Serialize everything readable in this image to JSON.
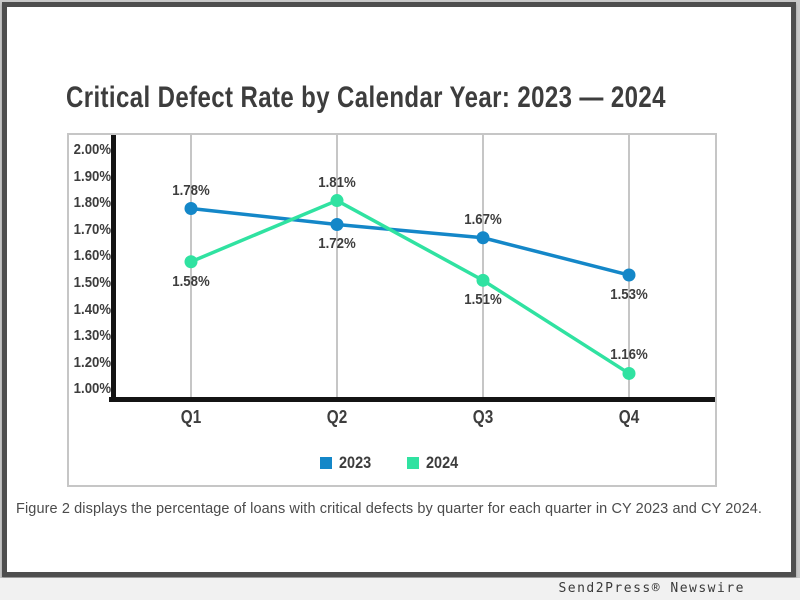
{
  "page": {
    "caption": "Figure 2 displays the percentage of loans with critical defects by quarter for each quarter in CY 2023 and CY 2024.",
    "footer": "Send2Press® Newswire"
  },
  "chart_data": {
    "type": "line",
    "title": "Critical Defect Rate by Calendar Year: 2023 — 2024",
    "categories": [
      "Q1",
      "Q2",
      "Q3",
      "Q4"
    ],
    "series": [
      {
        "name": "2023",
        "color": "#1487c8",
        "values": [
          1.78,
          1.72,
          1.67,
          1.53
        ],
        "point_labels": [
          "1.78%",
          "1.72%",
          "1.67%",
          "1.53%"
        ],
        "label_positions": [
          "above",
          "below",
          "above",
          "below"
        ]
      },
      {
        "name": "2024",
        "color": "#30e2a1",
        "values": [
          1.58,
          1.81,
          1.51,
          1.16
        ],
        "point_labels": [
          "1.58%",
          "1.81%",
          "1.51%",
          "1.16%"
        ],
        "label_positions": [
          "below",
          "above",
          "below",
          "above"
        ]
      }
    ],
    "y_tick_labels": [
      "2.00%",
      "1.90%",
      "1.80%",
      "1.70%",
      "1.60%",
      "1.50%",
      "1.40%",
      "1.30%",
      "1.20%",
      "1.00%"
    ],
    "ylim": [
      1.0,
      2.0
    ],
    "ylabel": "",
    "xlabel": "",
    "grid": "vertical",
    "legend_position": "bottom-center",
    "axis_color": "#141414",
    "grid_color": "#c6c6c6",
    "text_color": "#3d3d3d"
  }
}
